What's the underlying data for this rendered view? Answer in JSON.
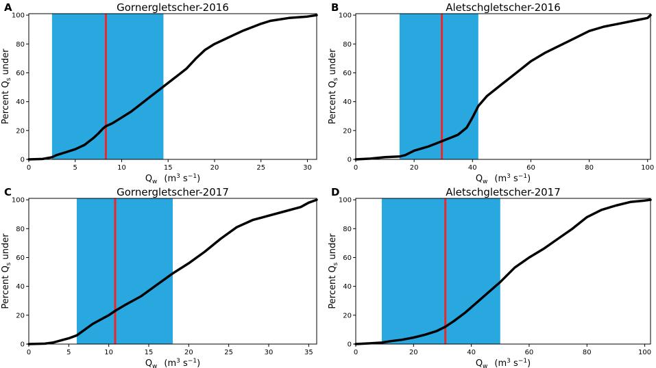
{
  "figure": {
    "axis_label_parts": {
      "x_main": "Q",
      "x_sub": "w",
      "x_units_lead": "(m",
      "x_units_exp1": "3",
      "x_units_mid": " s",
      "x_units_exp2": "−1",
      "x_units_tail": ")",
      "y_lead": "Percent Q",
      "y_sub": "s",
      "y_tail": " under"
    }
  },
  "chart_data": [
    {
      "type": "line",
      "panel": "A",
      "title": "Gornergletscher-2016",
      "xlabel": "Qw (m3 s−1)",
      "ylabel": "Percent Qs under",
      "xlim": [
        0,
        31
      ],
      "ylim": [
        0,
        101
      ],
      "xticks": [
        0,
        5,
        10,
        15,
        20,
        25,
        30
      ],
      "yticks": [
        0,
        20,
        40,
        60,
        80,
        100
      ],
      "shaded_band": {
        "x0": 2.5,
        "x1": 14.5,
        "color": "#29a8e0"
      },
      "vline": {
        "x": 8.3,
        "color": "#e8282b"
      },
      "series": [
        {
          "name": "cumulative",
          "x": [
            0,
            1.5,
            2.5,
            3,
            4,
            5,
            6,
            7,
            7.5,
            8,
            8.3,
            9,
            10,
            11,
            12,
            13,
            14,
            15,
            16,
            17,
            18,
            19,
            20,
            21,
            22,
            23,
            24,
            25,
            26,
            28,
            30,
            31
          ],
          "y": [
            0,
            0.3,
            1.5,
            3,
            5,
            7,
            10,
            15,
            18,
            21.5,
            23,
            25,
            29,
            33,
            38,
            43,
            48,
            53,
            58,
            63,
            70,
            76,
            80,
            83,
            86,
            89,
            91.5,
            94,
            96,
            98,
            99,
            100
          ]
        }
      ]
    },
    {
      "type": "line",
      "panel": "B",
      "title": "Aletschgletscher-2016",
      "xlabel": "Qw (m3 s−1)",
      "ylabel": "Percent Qs under",
      "xlim": [
        0,
        101
      ],
      "ylim": [
        0,
        101
      ],
      "xticks": [
        0,
        20,
        40,
        60,
        80,
        100
      ],
      "yticks": [
        0,
        20,
        40,
        60,
        80,
        100
      ],
      "shaded_band": {
        "x0": 15,
        "x1": 42,
        "color": "#29a8e0"
      },
      "vline": {
        "x": 29.5,
        "color": "#e8282b"
      },
      "series": [
        {
          "name": "cumulative",
          "x": [
            0,
            5,
            10,
            15,
            17,
            20,
            25,
            30,
            35,
            38,
            40,
            42,
            45,
            50,
            55,
            60,
            65,
            70,
            75,
            80,
            85,
            90,
            95,
            100,
            101
          ],
          "y": [
            0,
            0.5,
            1.5,
            2,
            3,
            6,
            9,
            13,
            17,
            22,
            29,
            37,
            44,
            52,
            60,
            68,
            74,
            79,
            84,
            89,
            92,
            94,
            96,
            98,
            100
          ]
        }
      ]
    },
    {
      "type": "line",
      "panel": "C",
      "title": "Gornergletscher-2017",
      "xlabel": "Qw (m3 s−1)",
      "ylabel": "Percent Qs under",
      "xlim": [
        0,
        36
      ],
      "ylim": [
        0,
        101
      ],
      "xticks": [
        0,
        5,
        10,
        15,
        20,
        25,
        30,
        35
      ],
      "yticks": [
        0,
        20,
        40,
        60,
        80,
        100
      ],
      "shaded_band": {
        "x0": 6,
        "x1": 18,
        "color": "#29a8e0"
      },
      "vline": {
        "x": 10.8,
        "color": "#e8282b"
      },
      "series": [
        {
          "name": "cumulative",
          "x": [
            0,
            2,
            3,
            4,
            5,
            6,
            7,
            8,
            9,
            10,
            10.8,
            12,
            14,
            16,
            18,
            20,
            22,
            24,
            26,
            28,
            30,
            32,
            34,
            35,
            36
          ],
          "y": [
            0,
            0.3,
            1,
            2.5,
            4,
            6,
            10,
            14,
            17,
            20,
            23,
            27,
            33,
            41,
            49,
            56,
            64,
            73,
            81,
            86,
            89,
            92,
            95,
            98,
            100
          ]
        }
      ]
    },
    {
      "type": "line",
      "panel": "D",
      "title": "Aletschgletscher-2017",
      "xlabel": "Qw (m3 s−1)",
      "ylabel": "Percent Qs under",
      "xlim": [
        0,
        102
      ],
      "ylim": [
        0,
        101
      ],
      "xticks": [
        0,
        20,
        40,
        60,
        80,
        100
      ],
      "yticks": [
        0,
        20,
        40,
        60,
        80,
        100
      ],
      "shaded_band": {
        "x0": 9,
        "x1": 50,
        "color": "#29a8e0"
      },
      "vline": {
        "x": 31,
        "color": "#e8282b"
      },
      "series": [
        {
          "name": "cumulative",
          "x": [
            0,
            5,
            9,
            12,
            16,
            20,
            24,
            28,
            31,
            34,
            38,
            42,
            46,
            50,
            55,
            60,
            65,
            70,
            75,
            80,
            85,
            90,
            95,
            100,
            102
          ],
          "y": [
            0,
            0.5,
            1,
            2,
            3,
            4.5,
            6.5,
            9,
            12,
            16,
            22,
            29,
            36,
            43,
            53,
            60,
            66,
            73,
            80,
            88,
            93,
            96,
            98.5,
            99.5,
            100
          ]
        }
      ]
    }
  ]
}
